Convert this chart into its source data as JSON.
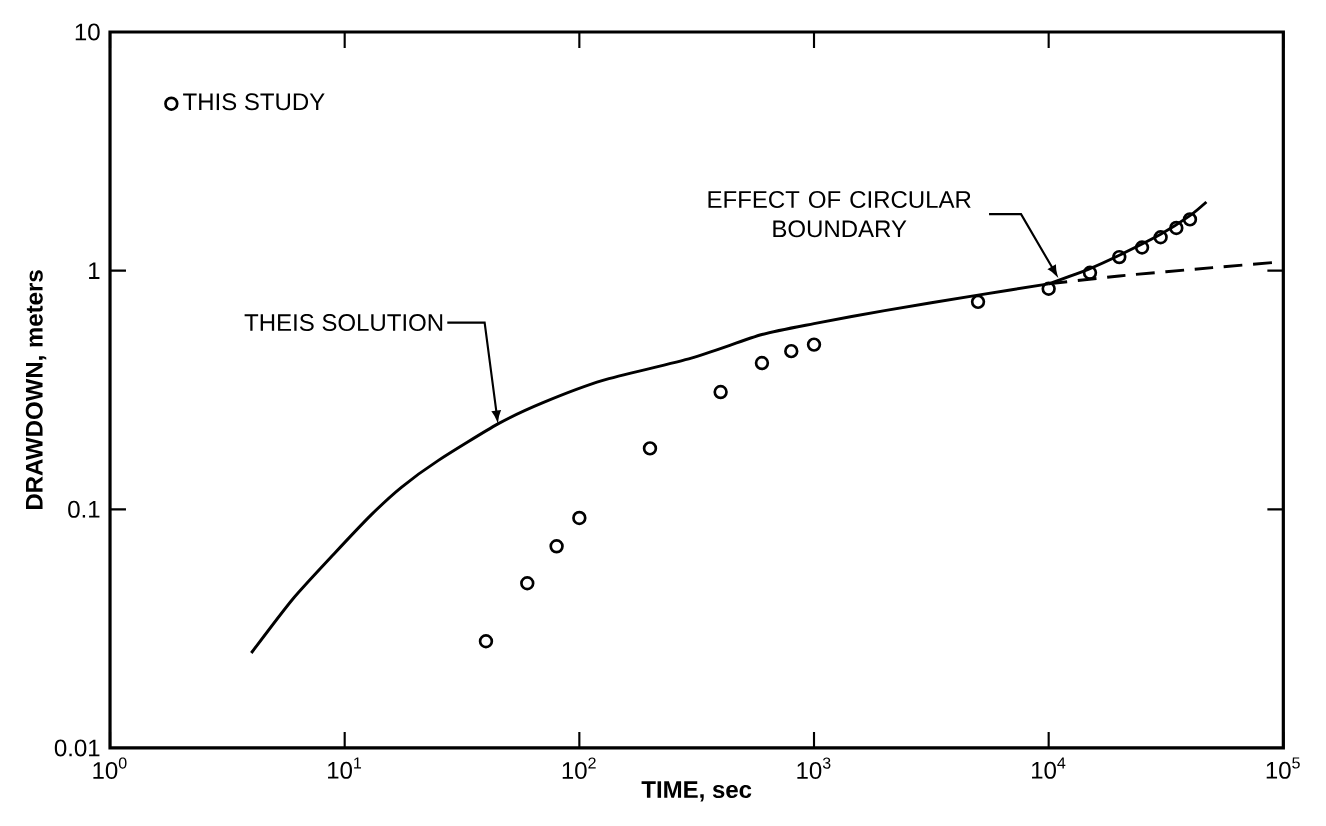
{
  "chart_data": {
    "type": "line",
    "xlabel": "TIME, sec",
    "ylabel": "DRAWDOWN, meters",
    "log": "xy",
    "legend": "top left",
    "marker": "none",
    "xlim": [
      1,
      100000
    ],
    "ylim": [
      0.01,
      10
    ],
    "xticks": [
      {
        "value": 1,
        "label": "10$^{0}$"
      },
      {
        "value": 10,
        "label": "10$^{1}$"
      },
      {
        "value": 100,
        "label": "10$^{2}$"
      },
      {
        "value": 1000,
        "label": "10$^{3}$"
      },
      {
        "value": 10000,
        "label": "10$^{4}$"
      },
      {
        "value": 100000,
        "label": "10$^{5}$"
      }
    ],
    "yticks": [
      0.01,
      0.1,
      1,
      10
    ],
    "annotations": [
      {
        "text": "THEIS SOLUTION",
        "x": 45,
        "y": 0.228
      },
      {
        "text": "EFFECT OF CIRCULAR BOUNDARY",
        "x": 11000,
        "y": 0.93
      }
    ],
    "series": [
      {
        "name": "THIS STUDY",
        "type": "scatter",
        "marker": "circle",
        "color": "#000000",
        "x": [
          40,
          60,
          80,
          100,
          200,
          400,
          600,
          800,
          1000,
          5000,
          10000,
          15000,
          20000,
          25000,
          30000,
          35000,
          40000
        ],
        "values": [
          0.028,
          0.049,
          0.07,
          0.092,
          0.18,
          0.31,
          0.41,
          0.46,
          0.49,
          0.74,
          0.84,
          0.98,
          1.14,
          1.25,
          1.38,
          1.51,
          1.64
        ]
      },
      {
        "line_style": "solid",
        "color": "#000000",
        "x": [
          4,
          6,
          9,
          13,
          17.5,
          25,
          45,
          70,
          126,
          300,
          600,
          1000,
          2000,
          5000,
          10000
        ],
        "values": [
          0.025,
          0.042,
          0.065,
          0.095,
          0.124,
          0.16,
          0.228,
          0.28,
          0.347,
          0.43,
          0.54,
          0.6,
          0.68,
          0.79,
          0.88
        ]
      },
      {
        "line_style": "dashed",
        "color": "#000000",
        "x": [
          10000,
          20000,
          50000,
          100000
        ],
        "values": [
          0.88,
          0.95,
          1.03,
          1.09
        ]
      },
      {
        "line_style": "solid",
        "color": "#000000",
        "x": [
          10000,
          15000,
          20000,
          30000,
          40000,
          47000
        ],
        "values": [
          0.88,
          1.02,
          1.16,
          1.42,
          1.7,
          1.94
        ]
      }
    ]
  }
}
